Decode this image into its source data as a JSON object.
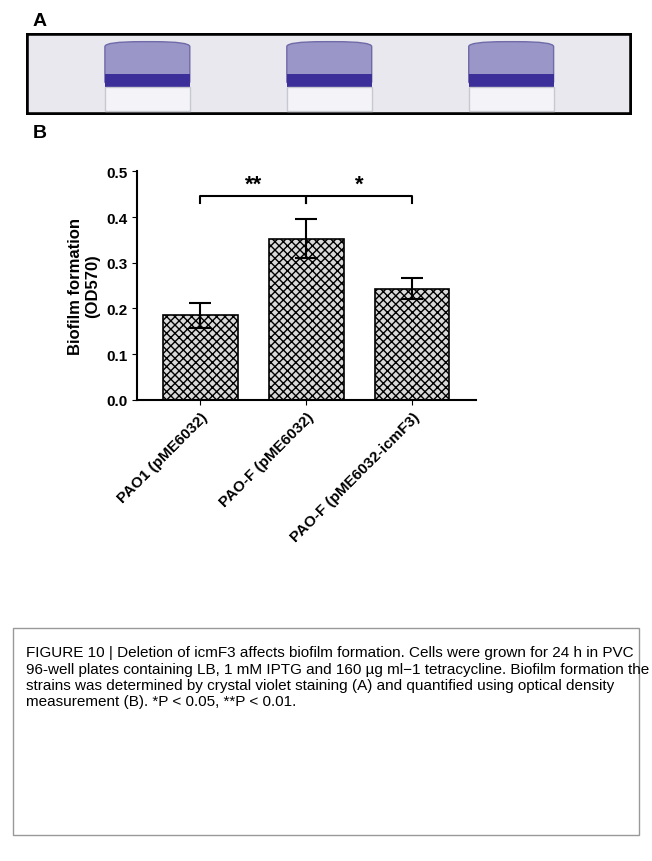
{
  "chart_data": {
    "type": "bar",
    "categories": [
      "PAO1 (pME6032)",
      "PAO-F (pME6032)",
      "PAO-F (pME6032-icmF3)"
    ],
    "values": [
      0.185,
      0.353,
      0.243
    ],
    "errors": [
      0.028,
      0.043,
      0.023
    ],
    "y_label": "Biofilm formation\n(OD570)",
    "color": "#d9d9d9",
    "ylim": [
      0.0,
      0.5
    ],
    "yticks": [
      0.0,
      0.1,
      0.2,
      0.3,
      0.4,
      0.5
    ],
    "grid": false,
    "annotations": [
      {
        "between": [
          0,
          1
        ],
        "label": "**"
      },
      {
        "between": [
          1,
          2
        ],
        "label": "*"
      }
    ]
  },
  "figure": {
    "panel_labels": [
      "A",
      "B"
    ],
    "caption": "FIGURE 10 | Deletion of icmF3 affects biofilm formation. Cells were grown for 24 h in PVC 96-well plates containing LB, 1 mM IPTG and 160 µg ml−1 tetracycline. Biofilm formation the strains was determined by crystal violet staining (A) and quantified using optical density measurement (B). *P < 0.05, **P < 0.01."
  }
}
